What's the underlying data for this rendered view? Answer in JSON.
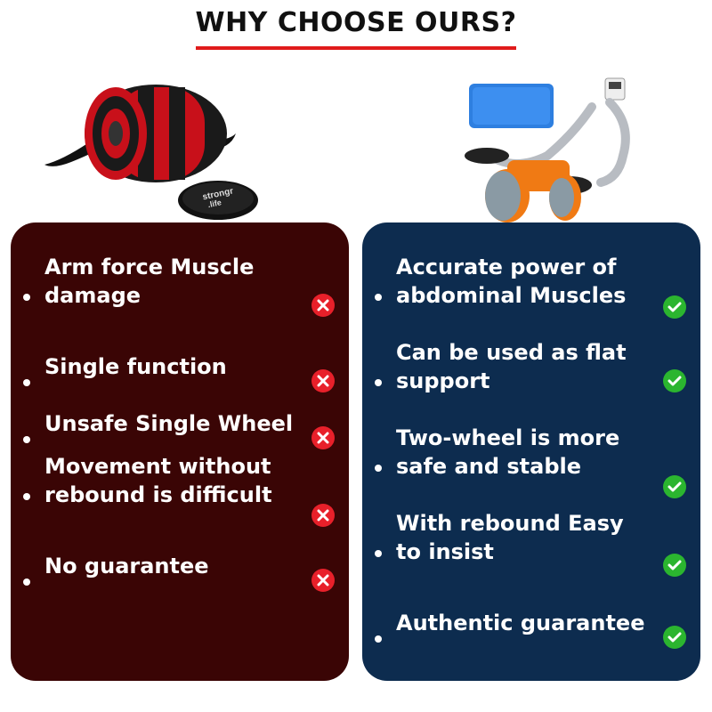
{
  "heading": {
    "title": "WHY CHOOSE OURS?"
  },
  "colors": {
    "underline": "#e01b1b",
    "left_panel": "#3a0505",
    "right_panel": "#0d2c4f",
    "x_badge": "#e8202a",
    "check_badge": "#2bb52f"
  },
  "left_product": {
    "disc_brand": "strongr\n.life",
    "icon": "ab-wheel-roller-image"
  },
  "right_product": {
    "icon": "elbow-support-ab-roller-image"
  },
  "left_panel": {
    "items": [
      {
        "text": "Arm force Muscle\ndamage",
        "icon": "x-icon"
      },
      {
        "text": "Single function",
        "icon": "x-icon"
      },
      {
        "text": "Unsafe Single Wheel",
        "icon": "x-icon"
      },
      {
        "text": "Movement without\nrebound is difficult",
        "icon": "x-icon"
      },
      {
        "text": "No guarantee",
        "icon": "x-icon"
      }
    ]
  },
  "right_panel": {
    "items": [
      {
        "text": "Accurate power of\nabdominal Muscles",
        "icon": "check-icon"
      },
      {
        "text": "Can be used as flat\nsupport",
        "icon": "check-icon"
      },
      {
        "text": "Two-wheel is more\nsafe and stable",
        "icon": "check-icon"
      },
      {
        "text": "With rebound Easy\nto insist",
        "icon": "check-icon"
      },
      {
        "text": "Authentic guarantee",
        "icon": "check-icon"
      }
    ]
  }
}
